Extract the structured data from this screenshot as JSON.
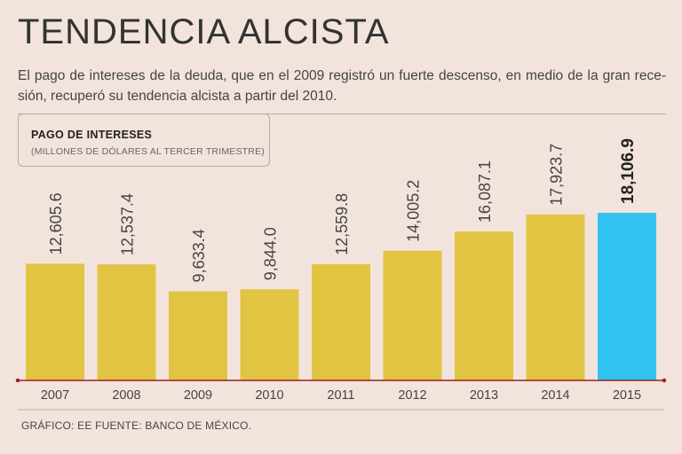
{
  "header": {
    "title": "TENDENCIA ALCISTA",
    "subtitle": "El pago de intereses de la deuda, que en el 2009 registró un fuerte descenso, en medio de la gran rece- sión, recuperó su tendencia alcista a partir del 2010."
  },
  "legend": {
    "title": "PAGO DE INTERESES",
    "subtitle": "(MILLONES DE DÓLARES AL TERCER TRIMESTRE)"
  },
  "footer": {
    "source": "GRÁFICO: EE  FUENTE: BANCO DE MÉXICO."
  },
  "colors": {
    "background": "#f2e4dc",
    "bar": "#e2c443",
    "highlight": "#33c3f0",
    "axis": "#9a1f1f"
  },
  "chart_data": {
    "type": "bar",
    "title": "PAGO DE INTERESES",
    "ylabel": "(MILLONES DE DÓLARES AL TERCER TRIMESTRE)",
    "xlabel": "",
    "categories": [
      "2007",
      "2008",
      "2009",
      "2010",
      "2011",
      "2012",
      "2013",
      "2014",
      "2015"
    ],
    "values": [
      12605.6,
      12537.4,
      9633.4,
      9844.0,
      12559.8,
      14005.2,
      16087.1,
      17923.7,
      18106.9
    ],
    "value_labels": [
      "12,605.6",
      "12,537.4",
      "9,633.4",
      "9,844.0",
      "12,559.8",
      "14,005.2",
      "16,087.1",
      "17,923.7",
      "18,106.9"
    ],
    "highlight_index": 8,
    "ylim": [
      0,
      19000
    ],
    "grid": false
  }
}
